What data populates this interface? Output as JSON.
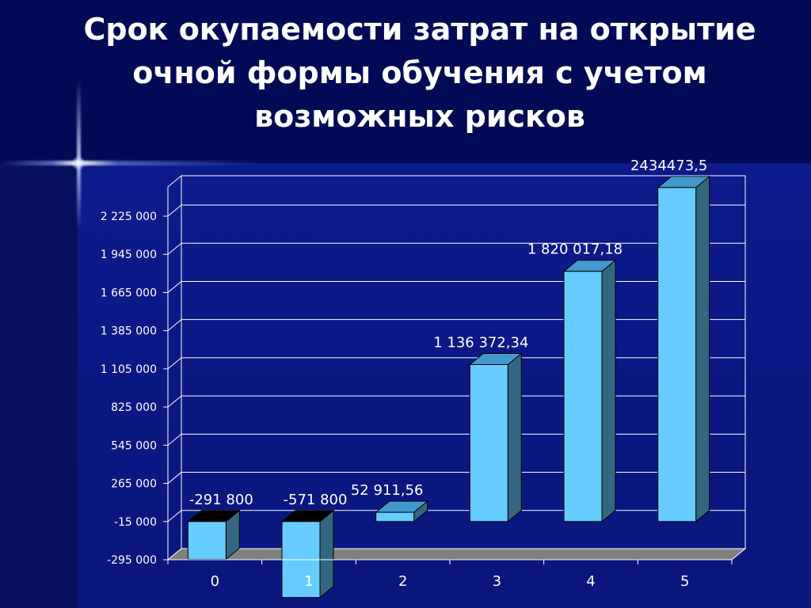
{
  "slide": {
    "title": "Срок окупаемости затрат на открытие очной формы обучения с учетом возможных рисков"
  },
  "colors": {
    "bar_front": "#66ccff",
    "bar_side": "#336680",
    "bar_top": "#4499cc",
    "bar_top_negative": "#000000",
    "grid": "#ffffff",
    "floor": "#808080",
    "text": "#ffffff"
  },
  "chart_data": {
    "type": "bar",
    "title": "Срок окупаемости затрат на открытие очной формы обучения с учетом возможных рисков",
    "xlabel": "",
    "ylabel": "",
    "categories": [
      "0",
      "1",
      "2",
      "3",
      "4",
      "5"
    ],
    "values": [
      -291800,
      -571800,
      52911.56,
      1136372.34,
      1820017.18,
      2434473.5
    ],
    "data_labels": [
      "-291 800",
      "-571 800",
      "52 911,56",
      "1 136 372,34",
      "1 820 017,18",
      "2434473,5"
    ],
    "y_ticks": [
      -295000,
      -15000,
      265000,
      545000,
      825000,
      1105000,
      1385000,
      1665000,
      1945000,
      2225000
    ],
    "y_tick_labels": [
      "-295 000",
      "-15 000",
      "265 000",
      "545 000",
      "825 000",
      "1 105 000",
      "1 385 000",
      "1 665 000",
      "1 945 000",
      "2 225 000"
    ],
    "grid": true,
    "style": "3d-column"
  }
}
